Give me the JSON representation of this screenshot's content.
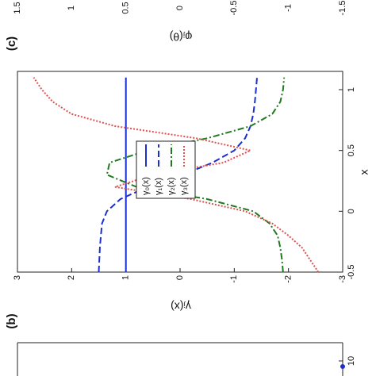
{
  "chart_data": [
    {
      "type": "line",
      "panel": "(b)",
      "xlabel": "x",
      "ylabel": "γⱼ(x)",
      "x": [
        -0.5,
        -0.4,
        -0.3,
        -0.2,
        -0.1,
        0,
        0.1,
        0.2,
        0.3,
        0.4,
        0.5,
        0.6,
        0.7,
        0.8,
        0.9,
        1.0,
        1.1
      ],
      "xlim": [
        -0.5,
        1.15
      ],
      "xticks": [
        -0.5,
        0,
        0.5,
        1
      ],
      "ylim": [
        -3,
        3
      ],
      "yticks": [
        -3,
        -2,
        -1,
        0,
        1,
        2,
        3
      ],
      "legend": "upper left",
      "series": [
        {
          "name": "γ₀(x)",
          "color": "#1a2fd0",
          "dash": "solid",
          "values": [
            1,
            1,
            1,
            1,
            1,
            1,
            1,
            1,
            1,
            1,
            1,
            1,
            1,
            1,
            1,
            1,
            1
          ]
        },
        {
          "name": "γ₁(x)",
          "color": "#1a2fd0",
          "dash": "dashed",
          "values": [
            1.5,
            1.49,
            1.48,
            1.46,
            1.44,
            1.35,
            1.1,
            0.6,
            -0.05,
            -0.6,
            -1.0,
            -1.2,
            -1.3,
            -1.35,
            -1.38,
            -1.4,
            -1.42
          ]
        },
        {
          "name": "γ₂(x)",
          "color": "#1e7a1e",
          "dash": "dashdot",
          "values": [
            -1.9,
            -1.88,
            -1.85,
            -1.8,
            -1.65,
            -1.35,
            -0.5,
            0.8,
            1.35,
            1.3,
            0.6,
            -0.5,
            -1.3,
            -1.7,
            -1.85,
            -1.9,
            -1.92
          ]
        },
        {
          "name": "γ₃(x)",
          "color": "#e05050",
          "dash": "dotted",
          "values": [
            -2.55,
            -2.4,
            -2.25,
            -2.0,
            -1.7,
            -1.2,
            -0.2,
            1.2,
            0.5,
            -0.8,
            -1.3,
            -0.3,
            1.2,
            2.0,
            2.35,
            2.55,
            2.7
          ]
        }
      ]
    },
    {
      "type": "axis",
      "panel": "(c)",
      "ylabel": "φⱼ(θ)",
      "ylim": [
        -1.5,
        1.5
      ],
      "yticks": [
        -1.5,
        -1,
        -0.5,
        0,
        0.5,
        1,
        1.5
      ]
    },
    {
      "type": "axis",
      "xticks": [
        10
      ]
    }
  ]
}
